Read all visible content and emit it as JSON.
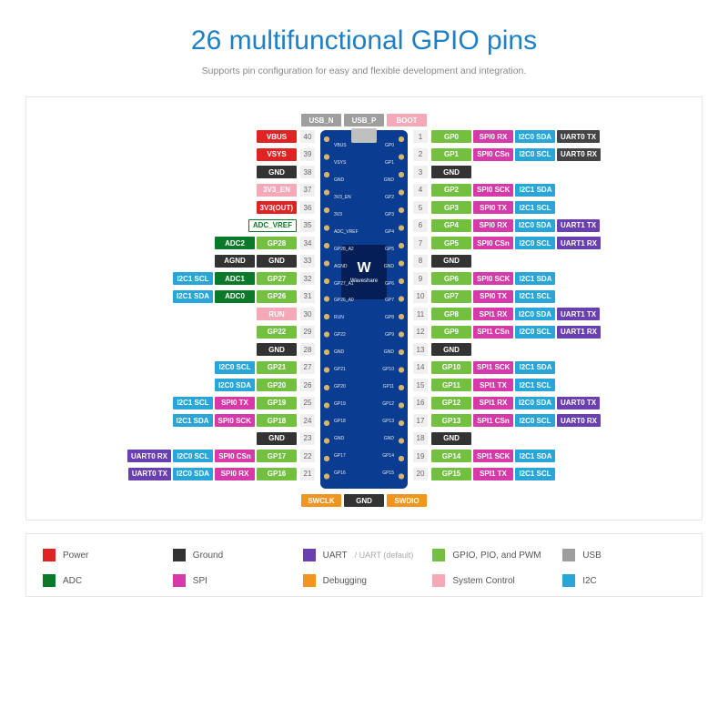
{
  "colors": {
    "power": "#e02222",
    "ground": "#333333",
    "uart": "#6a3fb0",
    "uart_default": "#444444",
    "gpio": "#73c040",
    "usb": "#9e9e9e",
    "adc": "#0a7a2a",
    "spi": "#d63aa8",
    "debug": "#f2951f",
    "sysctrl": "#f4a8b8",
    "i2c": "#2aa5d8"
  },
  "header": {
    "title": "26 multifunctional GPIO pins",
    "subtitle": "Supports pin configuration for easy and flexible development and integration."
  },
  "top_labels": [
    {
      "text": "USB_N",
      "color": "#9e9e9e"
    },
    {
      "text": "USB_P",
      "color": "#9e9e9e"
    },
    {
      "text": "BOOT",
      "color": "#f4a8b8"
    }
  ],
  "bottom_labels": [
    {
      "text": "SWCLK",
      "color": "#f2951f"
    },
    {
      "text": "GND",
      "color": "#333333"
    },
    {
      "text": "SWDIO",
      "color": "#f2951f"
    }
  ],
  "board_left_labels": [
    "VBUS",
    "VSYS",
    "GND",
    "3V3_EN",
    "3V3",
    "ADC_VREF",
    "GP28_A2",
    "AGND",
    "GP27_A1",
    "GP26_A0",
    "RUN",
    "GP22",
    "GND",
    "GP21",
    "GP20",
    "GP19",
    "GP18",
    "GND",
    "GP17",
    "GP16"
  ],
  "board_right_labels": [
    "GP0",
    "GP1",
    "GND",
    "GP2",
    "GP3",
    "GP4",
    "GP5",
    "GND",
    "GP6",
    "GP7",
    "GP8",
    "GP9",
    "GND",
    "GP10",
    "GP11",
    "GP12",
    "GP13",
    "GND",
    "GP14",
    "GP15"
  ],
  "left_pins": [
    {
      "num": "40",
      "tags": [
        {
          "t": "VBUS",
          "c": "#e02222"
        }
      ]
    },
    {
      "num": "39",
      "tags": [
        {
          "t": "VSYS",
          "c": "#e02222"
        }
      ]
    },
    {
      "num": "38",
      "tags": [
        {
          "t": "GND",
          "c": "#333333"
        }
      ]
    },
    {
      "num": "37",
      "tags": [
        {
          "t": "3V3_EN",
          "c": "#f4a8b8"
        }
      ]
    },
    {
      "num": "36",
      "tags": [
        {
          "t": "3V3(OUT)",
          "c": "#e02222"
        }
      ]
    },
    {
      "num": "35",
      "tags": [
        {
          "t": "ADC_VREF",
          "c": "#0a7a2a",
          "hollow": true
        }
      ]
    },
    {
      "num": "34",
      "tags": [
        {
          "t": "ADC2",
          "c": "#0a7a2a"
        },
        {
          "t": "GP28",
          "c": "#73c040"
        }
      ]
    },
    {
      "num": "33",
      "tags": [
        {
          "t": "AGND",
          "c": "#333333"
        },
        {
          "t": "GND",
          "c": "#333333"
        }
      ]
    },
    {
      "num": "32",
      "tags": [
        {
          "t": "I2C1 SCL",
          "c": "#2aa5d8"
        },
        {
          "t": "ADC1",
          "c": "#0a7a2a"
        },
        {
          "t": "GP27",
          "c": "#73c040"
        }
      ]
    },
    {
      "num": "31",
      "tags": [
        {
          "t": "I2C1 SDA",
          "c": "#2aa5d8"
        },
        {
          "t": "ADC0",
          "c": "#0a7a2a"
        },
        {
          "t": "GP26",
          "c": "#73c040"
        }
      ]
    },
    {
      "num": "30",
      "tags": [
        {
          "t": "RUN",
          "c": "#f4a8b8"
        }
      ]
    },
    {
      "num": "29",
      "tags": [
        {
          "t": "GP22",
          "c": "#73c040"
        }
      ]
    },
    {
      "num": "28",
      "tags": [
        {
          "t": "GND",
          "c": "#333333"
        }
      ]
    },
    {
      "num": "27",
      "tags": [
        {
          "t": "I2C0 SCL",
          "c": "#2aa5d8"
        },
        {
          "t": "GP21",
          "c": "#73c040"
        }
      ]
    },
    {
      "num": "26",
      "tags": [
        {
          "t": "I2C0 SDA",
          "c": "#2aa5d8"
        },
        {
          "t": "GP20",
          "c": "#73c040"
        }
      ]
    },
    {
      "num": "25",
      "tags": [
        {
          "t": "I2C1 SCL",
          "c": "#2aa5d8"
        },
        {
          "t": "SPI0 TX",
          "c": "#d63aa8"
        },
        {
          "t": "GP19",
          "c": "#73c040"
        }
      ]
    },
    {
      "num": "24",
      "tags": [
        {
          "t": "I2C1 SDA",
          "c": "#2aa5d8"
        },
        {
          "t": "SPI0 SCK",
          "c": "#d63aa8"
        },
        {
          "t": "GP18",
          "c": "#73c040"
        }
      ]
    },
    {
      "num": "23",
      "tags": [
        {
          "t": "GND",
          "c": "#333333"
        }
      ]
    },
    {
      "num": "22",
      "tags": [
        {
          "t": "UART0 RX",
          "c": "#6a3fb0"
        },
        {
          "t": "I2C0 SCL",
          "c": "#2aa5d8"
        },
        {
          "t": "SPI0 CSn",
          "c": "#d63aa8"
        },
        {
          "t": "GP17",
          "c": "#73c040"
        }
      ]
    },
    {
      "num": "21",
      "tags": [
        {
          "t": "UART0 TX",
          "c": "#6a3fb0"
        },
        {
          "t": "I2C0 SDA",
          "c": "#2aa5d8"
        },
        {
          "t": "SPI0 RX",
          "c": "#d63aa8"
        },
        {
          "t": "GP16",
          "c": "#73c040"
        }
      ]
    }
  ],
  "right_pins": [
    {
      "num": "1",
      "tags": [
        {
          "t": "GP0",
          "c": "#73c040"
        },
        {
          "t": "SPI0 RX",
          "c": "#d63aa8"
        },
        {
          "t": "I2C0 SDA",
          "c": "#2aa5d8"
        },
        {
          "t": "UART0 TX",
          "c": "#444444"
        }
      ]
    },
    {
      "num": "2",
      "tags": [
        {
          "t": "GP1",
          "c": "#73c040"
        },
        {
          "t": "SPI0 CSn",
          "c": "#d63aa8"
        },
        {
          "t": "I2C0 SCL",
          "c": "#2aa5d8"
        },
        {
          "t": "UART0 RX",
          "c": "#444444"
        }
      ]
    },
    {
      "num": "3",
      "tags": [
        {
          "t": "GND",
          "c": "#333333"
        }
      ]
    },
    {
      "num": "4",
      "tags": [
        {
          "t": "GP2",
          "c": "#73c040"
        },
        {
          "t": "SPI0 SCK",
          "c": "#d63aa8"
        },
        {
          "t": "I2C1 SDA",
          "c": "#2aa5d8"
        }
      ]
    },
    {
      "num": "5",
      "tags": [
        {
          "t": "GP3",
          "c": "#73c040"
        },
        {
          "t": "SPI0 TX",
          "c": "#d63aa8"
        },
        {
          "t": "I2C1 SCL",
          "c": "#2aa5d8"
        }
      ]
    },
    {
      "num": "6",
      "tags": [
        {
          "t": "GP4",
          "c": "#73c040"
        },
        {
          "t": "SPI0 RX",
          "c": "#d63aa8"
        },
        {
          "t": "I2C0 SDA",
          "c": "#2aa5d8"
        },
        {
          "t": "UART1 TX",
          "c": "#6a3fb0"
        }
      ]
    },
    {
      "num": "7",
      "tags": [
        {
          "t": "GP5",
          "c": "#73c040"
        },
        {
          "t": "SPI0 CSn",
          "c": "#d63aa8"
        },
        {
          "t": "I2C0 SCL",
          "c": "#2aa5d8"
        },
        {
          "t": "UART1 RX",
          "c": "#6a3fb0"
        }
      ]
    },
    {
      "num": "8",
      "tags": [
        {
          "t": "GND",
          "c": "#333333"
        }
      ]
    },
    {
      "num": "9",
      "tags": [
        {
          "t": "GP6",
          "c": "#73c040"
        },
        {
          "t": "SPI0 SCK",
          "c": "#d63aa8"
        },
        {
          "t": "I2C1 SDA",
          "c": "#2aa5d8"
        }
      ]
    },
    {
      "num": "10",
      "tags": [
        {
          "t": "GP7",
          "c": "#73c040"
        },
        {
          "t": "SPI0 TX",
          "c": "#d63aa8"
        },
        {
          "t": "I2C1 SCL",
          "c": "#2aa5d8"
        }
      ]
    },
    {
      "num": "11",
      "tags": [
        {
          "t": "GP8",
          "c": "#73c040"
        },
        {
          "t": "SPI1 RX",
          "c": "#d63aa8"
        },
        {
          "t": "I2C0 SDA",
          "c": "#2aa5d8"
        },
        {
          "t": "UART1 TX",
          "c": "#6a3fb0"
        }
      ]
    },
    {
      "num": "12",
      "tags": [
        {
          "t": "GP9",
          "c": "#73c040"
        },
        {
          "t": "SPI1 CSn",
          "c": "#d63aa8"
        },
        {
          "t": "I2C0 SCL",
          "c": "#2aa5d8"
        },
        {
          "t": "UART1 RX",
          "c": "#6a3fb0"
        }
      ]
    },
    {
      "num": "13",
      "tags": [
        {
          "t": "GND",
          "c": "#333333"
        }
      ]
    },
    {
      "num": "14",
      "tags": [
        {
          "t": "GP10",
          "c": "#73c040"
        },
        {
          "t": "SPI1 SCK",
          "c": "#d63aa8"
        },
        {
          "t": "I2C1 SDA",
          "c": "#2aa5d8"
        }
      ]
    },
    {
      "num": "15",
      "tags": [
        {
          "t": "GP11",
          "c": "#73c040"
        },
        {
          "t": "SPI1 TX",
          "c": "#d63aa8"
        },
        {
          "t": "I2C1 SCL",
          "c": "#2aa5d8"
        }
      ]
    },
    {
      "num": "16",
      "tags": [
        {
          "t": "GP12",
          "c": "#73c040"
        },
        {
          "t": "SPI1 RX",
          "c": "#d63aa8"
        },
        {
          "t": "I2C0 SDA",
          "c": "#2aa5d8"
        },
        {
          "t": "UART0 TX",
          "c": "#6a3fb0"
        }
      ]
    },
    {
      "num": "17",
      "tags": [
        {
          "t": "GP13",
          "c": "#73c040"
        },
        {
          "t": "SPI1 CSn",
          "c": "#d63aa8"
        },
        {
          "t": "I2C0 SCL",
          "c": "#2aa5d8"
        },
        {
          "t": "UART0 RX",
          "c": "#6a3fb0"
        }
      ]
    },
    {
      "num": "18",
      "tags": [
        {
          "t": "GND",
          "c": "#333333"
        }
      ]
    },
    {
      "num": "19",
      "tags": [
        {
          "t": "GP14",
          "c": "#73c040"
        },
        {
          "t": "SPI1 SCK",
          "c": "#d63aa8"
        },
        {
          "t": "I2C1 SDA",
          "c": "#2aa5d8"
        }
      ]
    },
    {
      "num": "20",
      "tags": [
        {
          "t": "GP15",
          "c": "#73c040"
        },
        {
          "t": "SPI1 TX",
          "c": "#d63aa8"
        },
        {
          "t": "I2C1 SCL",
          "c": "#2aa5d8"
        }
      ]
    }
  ],
  "chip": {
    "logo": "W",
    "text": "Waveshare"
  },
  "legend": [
    {
      "label": "Power",
      "c": "#e02222"
    },
    {
      "label": "Ground",
      "c": "#333333"
    },
    {
      "label": "UART",
      "sub": " / UART (default)",
      "c": "#6a3fb0"
    },
    {
      "label": "GPIO, PIO, and PWM",
      "c": "#73c040"
    },
    {
      "label": "USB",
      "c": "#9e9e9e"
    },
    {
      "label": "ADC",
      "c": "#0a7a2a"
    },
    {
      "label": "SPI",
      "c": "#d63aa8"
    },
    {
      "label": "Debugging",
      "c": "#f2951f"
    },
    {
      "label": "System Control",
      "c": "#f4a8b8"
    },
    {
      "label": "I2C",
      "c": "#2aa5d8"
    }
  ]
}
